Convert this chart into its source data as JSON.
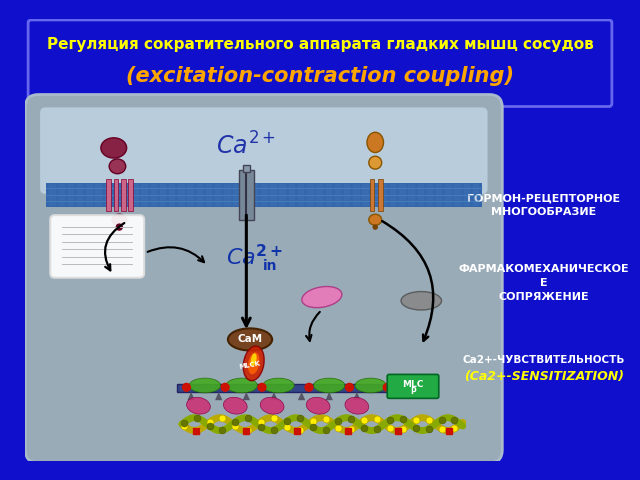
{
  "bg_color": "#1010CC",
  "title_line1": "Регуляция сократительного аппарата гладких мышц сосудов",
  "title_line2": "(excitation-contraction coupling)",
  "title_color1": "#FFFF00",
  "title_color2": "#FFA500",
  "cell_bg": "#9AABB8",
  "extracell_bg": "#B8CCDC",
  "membrane_color": "#3366AA",
  "right_label1_line1": "ГОРМОН-РЕЦЕПТОРНОЕ",
  "right_label1_line2": "МНОГООБРАЗИЕ",
  "right_label2_line1": "ФАРМАКОМЕХАНИЧЕСКОЕ",
  "right_label2_line2": "Е",
  "right_label2_line3": "СОПРЯЖЕНИЕ",
  "right_label3_line1": "Са2+-ЧУВСТВИТЕЛЬНОСТЬ",
  "right_label3_line2": "(Ca2+-SENSITIZATION)",
  "right_text_color": "#FFFFFF",
  "right_text_yellow": "#FFFF00"
}
